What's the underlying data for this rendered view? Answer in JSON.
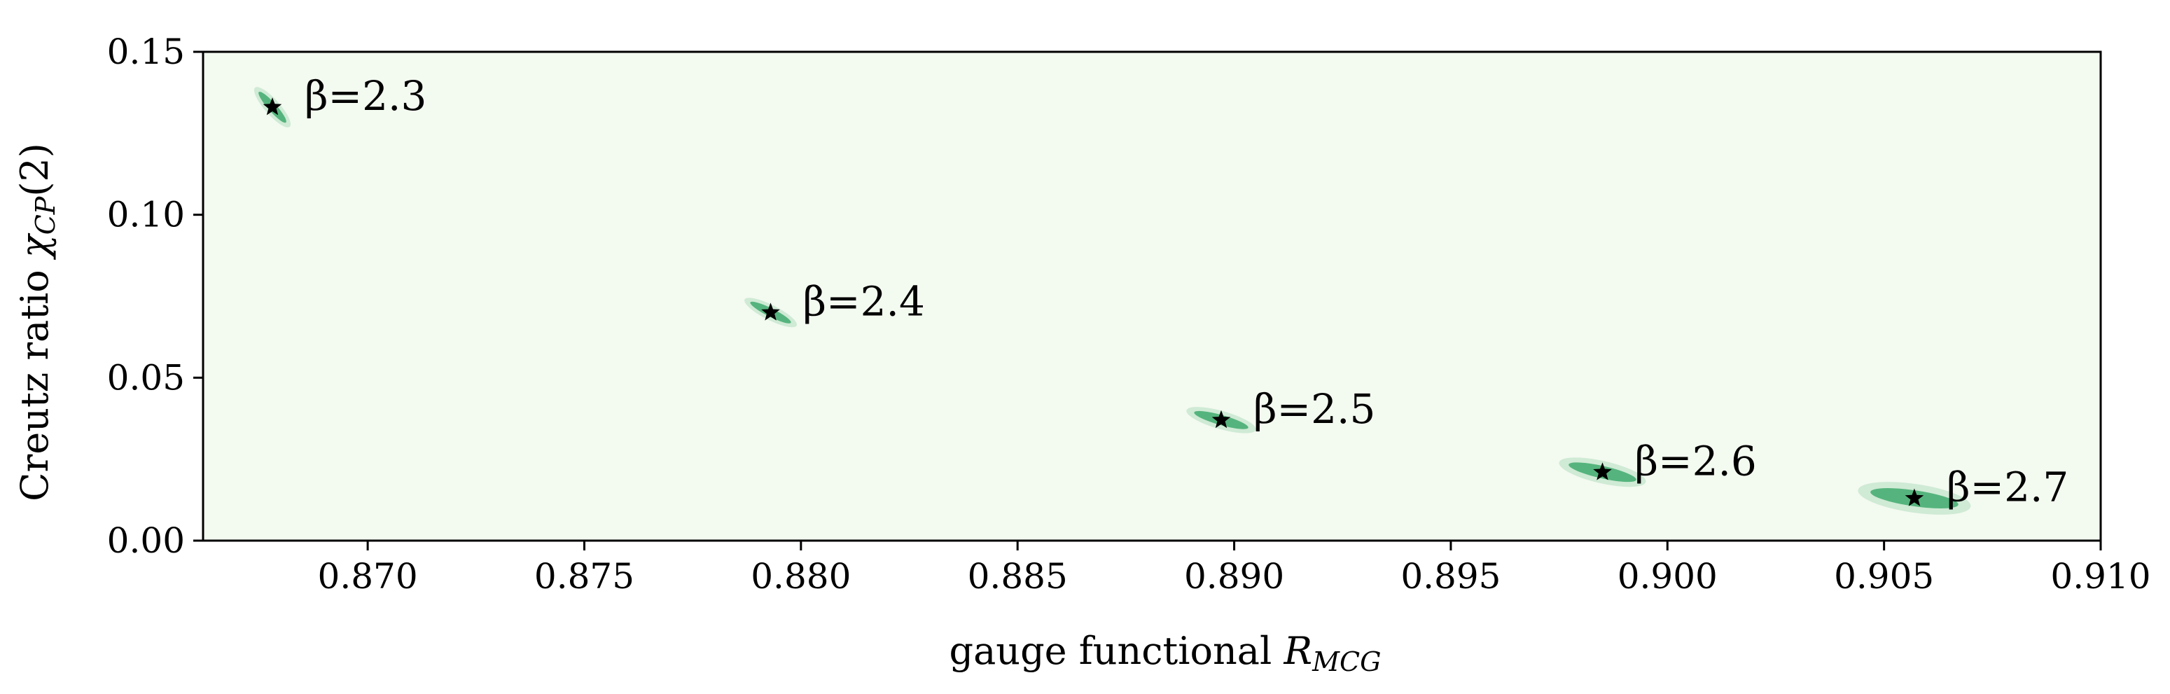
{
  "chart_data": {
    "type": "scatter",
    "title": "",
    "xlabel": "gauge functional R_MCG",
    "xlabel_main": "gauge functional ",
    "xlabel_var": "R",
    "xlabel_sub": "MCG",
    "ylabel": "Creutz ratio χ_CP(2)",
    "ylabel_main": "Creutz ratio ",
    "ylabel_var": "χ",
    "ylabel_sub": "CP",
    "ylabel_tail": "(2)",
    "xlim": [
      0.8662,
      0.91
    ],
    "ylim": [
      0.0,
      0.15
    ],
    "xticks": [
      0.87,
      0.875,
      0.88,
      0.885,
      0.89,
      0.895,
      0.9,
      0.905,
      0.91
    ],
    "xtick_labels": [
      "0.870",
      "0.875",
      "0.880",
      "0.885",
      "0.890",
      "0.895",
      "0.900",
      "0.905",
      "0.910"
    ],
    "yticks": [
      0.0,
      0.05,
      0.1,
      0.15
    ],
    "ytick_labels": [
      "0.00",
      "0.05",
      "0.10",
      "0.15"
    ],
    "grid": false,
    "background_color": "#f3faf0",
    "cloud_color": "#2ca25f",
    "marker_color": "#000000",
    "marker": "star",
    "series": [
      {
        "points": [
          {
            "label": "β=2.3",
            "x": 0.8678,
            "y": 0.133,
            "spread_x": 0.0004,
            "spread_y": 0.006
          },
          {
            "label": "β=2.4",
            "x": 0.8793,
            "y": 0.07,
            "spread_x": 0.0006,
            "spread_y": 0.004
          },
          {
            "label": "β=2.5",
            "x": 0.8897,
            "y": 0.037,
            "spread_x": 0.0008,
            "spread_y": 0.003
          },
          {
            "label": "β=2.6",
            "x": 0.8985,
            "y": 0.021,
            "spread_x": 0.001,
            "spread_y": 0.003
          },
          {
            "label": "β=2.7",
            "x": 0.9057,
            "y": 0.013,
            "spread_x": 0.0013,
            "spread_y": 0.0025
          }
        ]
      }
    ]
  }
}
